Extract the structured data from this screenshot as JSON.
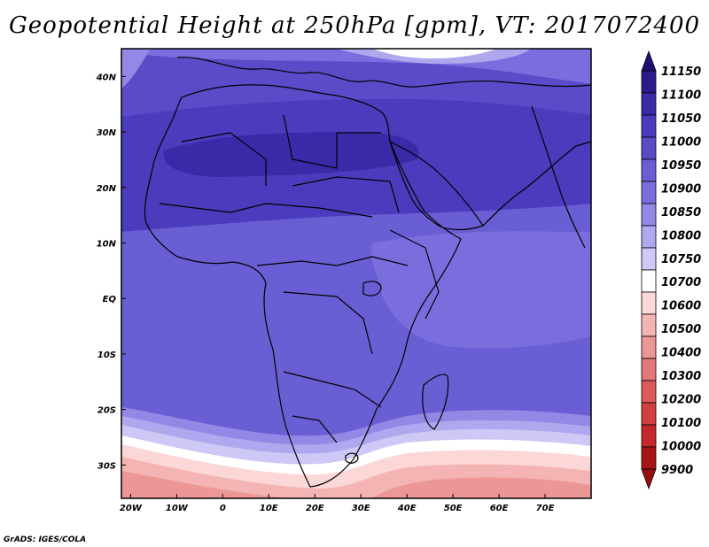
{
  "title": "Geopotential Height at 250hPa [gpm], VT: 2017072400",
  "credit": "GrADS: IGES/COLA",
  "map": {
    "variable": "Geopotential Height",
    "level": "250hPa",
    "units": "gpm",
    "valid_time": "2017072400",
    "lon_range": [
      -22,
      80
    ],
    "lat_range": [
      -36,
      45
    ],
    "lon_ticks": [
      "20W",
      "10W",
      "0",
      "10E",
      "20E",
      "30E",
      "40E",
      "50E",
      "60E",
      "70E"
    ],
    "lat_ticks": [
      "40N",
      "30N",
      "20N",
      "10N",
      "EQ",
      "10S",
      "20S",
      "30S"
    ]
  },
  "colorbar": {
    "labels": [
      "11150",
      "11100",
      "11050",
      "11000",
      "10950",
      "10900",
      "10850",
      "10800",
      "10750",
      "10700",
      "10600",
      "10500",
      "10400",
      "10300",
      "10200",
      "10100",
      "10000",
      "9900"
    ],
    "colors": [
      "#2a1a8c",
      "#3a2aa8",
      "#4a3cbc",
      "#5a4cc8",
      "#6a5ed4",
      "#7a6ede",
      "#9488e6",
      "#b0a8ee",
      "#cdc8f6",
      "#ffffff",
      "#fbd7d7",
      "#f4b4b4",
      "#ec9696",
      "#e47878",
      "#dc5a5a",
      "#d04040",
      "#c42828",
      "#a61616"
    ],
    "endpoints": [
      "#1d0f78",
      "#961010"
    ]
  },
  "field": {
    "bands": [
      {
        "color": "#5a4cc8",
        "name": "north-mid"
      },
      {
        "color": "#4a3cbc",
        "name": "subtropical-high"
      },
      {
        "color": "#6a5ed4",
        "name": "tropics"
      },
      {
        "color": "#7a6ede",
        "name": "tropics-low"
      },
      {
        "color": "#6a5ed4",
        "name": "southern-subtropics"
      },
      {
        "color": "#9488e6",
        "name": "s1"
      },
      {
        "color": "#b0a8ee",
        "name": "s2"
      },
      {
        "color": "#cdc8f6",
        "name": "s3"
      },
      {
        "color": "#ffffff",
        "name": "s4"
      },
      {
        "color": "#fbd7d7",
        "name": "s5"
      },
      {
        "color": "#f4b4b4",
        "name": "s6"
      },
      {
        "color": "#ec9696",
        "name": "s7"
      }
    ]
  }
}
